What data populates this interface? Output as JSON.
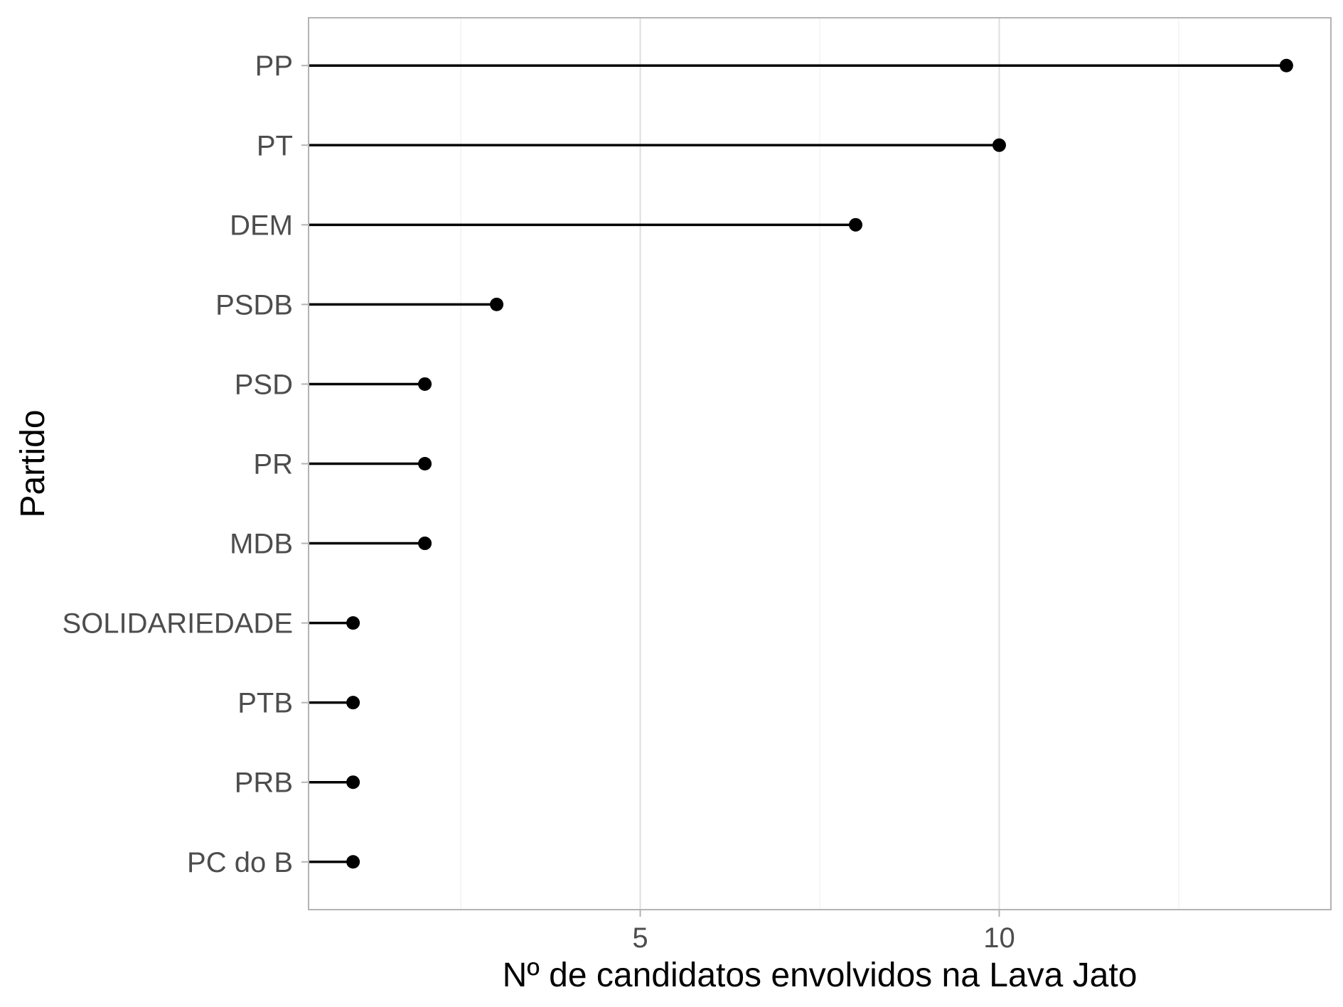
{
  "chart_data": {
    "type": "lollipop",
    "orientation": "horizontal",
    "categories": [
      "PP",
      "PT",
      "DEM",
      "PSDB",
      "PSD",
      "PR",
      "MDB",
      "SOLIDARIEDADE",
      "PTB",
      "PRB",
      "PC do B"
    ],
    "values": [
      14,
      10,
      8,
      3,
      2,
      2,
      2,
      1,
      1,
      1,
      1
    ],
    "xlabel": "Nº de candidatos envolvidos na Lava Jato",
    "ylabel": "Partido",
    "xlim": [
      0.38,
      14.62
    ],
    "xticks": [
      5,
      10
    ],
    "xtick_labels": [
      "5",
      "10"
    ],
    "x_minor_gridlines": [
      2.5,
      7.5,
      12.5
    ],
    "grid": true,
    "legend": "none",
    "colors": {
      "mark": "#000000",
      "panel_border": "#b3b3b3",
      "grid_major": "#dedede",
      "grid_minor": "#efefef",
      "tick_text": "#4d4d4d"
    }
  }
}
